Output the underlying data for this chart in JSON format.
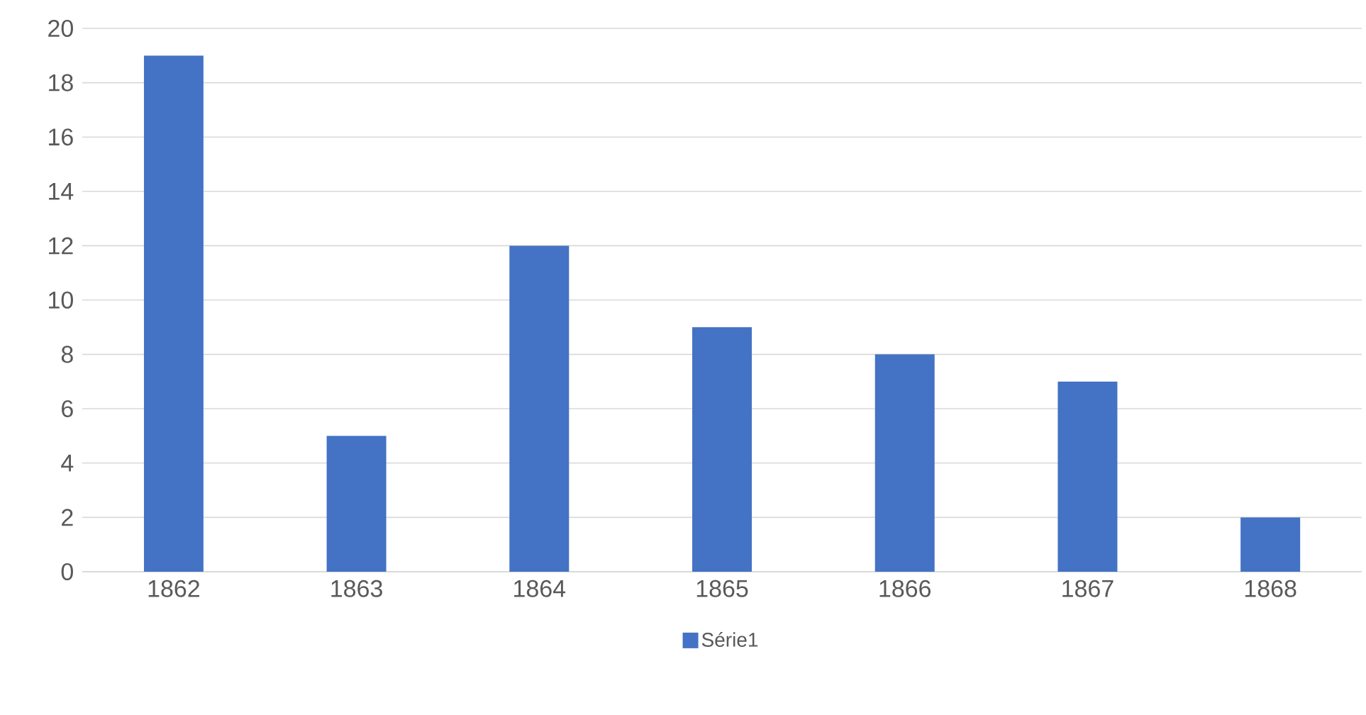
{
  "chart_data": {
    "type": "bar",
    "categories": [
      "1862",
      "1863",
      "1864",
      "1865",
      "1866",
      "1867",
      "1868"
    ],
    "series": [
      {
        "name": "Série1",
        "color": "#4472c4",
        "values": [
          19,
          5,
          12,
          9,
          8,
          7,
          2
        ]
      }
    ],
    "ylim": [
      0,
      20
    ],
    "yticks": [
      0,
      2,
      4,
      6,
      8,
      10,
      12,
      14,
      16,
      18,
      20
    ],
    "grid": "y",
    "legend": "bottom"
  }
}
